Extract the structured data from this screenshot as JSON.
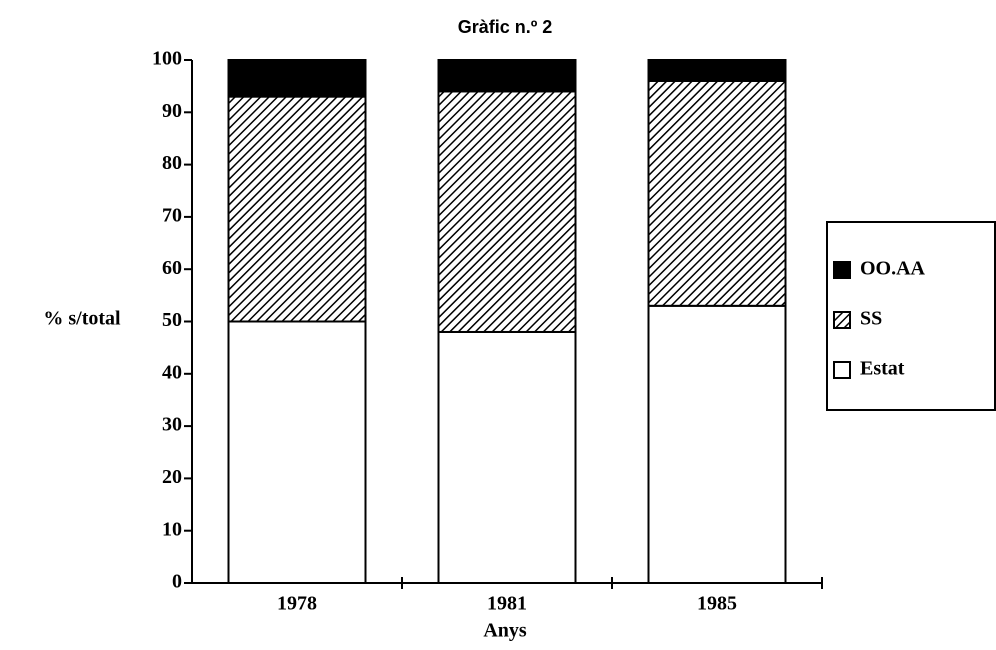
{
  "chart_data": {
    "type": "stacked_bar",
    "title": "Gràfic n.º 2",
    "x_label": "Anys",
    "y_label": "% s/total",
    "categories": [
      "1978",
      "1981",
      "1985"
    ],
    "series": [
      {
        "name": "Estat",
        "color": "#ffffff",
        "pattern": "solid",
        "values": [
          50,
          48,
          53
        ]
      },
      {
        "name": "SS",
        "color": "#000000",
        "pattern": "hatch",
        "values": [
          43,
          46,
          43
        ]
      },
      {
        "name": "OO.AA",
        "color": "#000000",
        "pattern": "solid",
        "values": [
          7,
          6,
          4
        ]
      }
    ],
    "ylim": [
      0,
      100
    ],
    "yticks": [
      0,
      10,
      20,
      30,
      40,
      50,
      60,
      70,
      80,
      90,
      100
    ],
    "grid": false,
    "legend": "right"
  }
}
